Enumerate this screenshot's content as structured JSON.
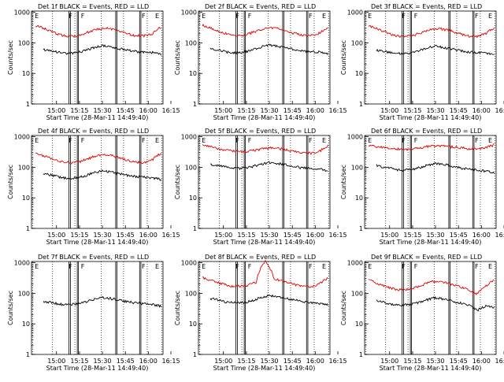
{
  "colors": {
    "events": "#000000",
    "lld": "#e00000",
    "axis": "#000000",
    "dotted": "#000000"
  },
  "common": {
    "ylabel": "Counts/sec",
    "xlabel": "Start Time (28-Mar-11 14:49:40)",
    "xticks": [
      "15:00",
      "15:15",
      "15:30",
      "15:45",
      "16:00",
      "16:15"
    ],
    "yticks": [
      "1",
      "10",
      "100",
      "1000"
    ],
    "flags": [
      "E",
      "F",
      "F",
      "F",
      "E"
    ]
  },
  "chart_data": [
    {
      "type": "line",
      "title": "Det 1f  BLACK = Events, RED = LLD",
      "yscale": "log",
      "ylim": [
        1,
        1100
      ],
      "xlim": [
        "14:49:40",
        "16:26"
      ],
      "series": [
        {
          "values": [
            [
              370,
              290,
              220,
              175,
              165,
              180,
              230,
              290,
              300,
              260,
              210,
              175,
              165,
              200,
              320
            ]
          ]
        },
        {
          "values": [
            [
              60,
              55,
              48,
              45,
              48,
              55,
              70,
              80,
              75,
              65,
              58,
              52,
              50,
              48,
              42
            ]
          ]
        }
      ]
    },
    {
      "type": "line",
      "title": "Det 2f  BLACK = Events, RED = LLD",
      "yscale": "log",
      "ylim": [
        1,
        1100
      ],
      "xlim": [
        "14:49:40",
        "16:26"
      ],
      "series": [
        {
          "values": [
            [
              380,
              300,
              230,
              185,
              175,
              190,
              240,
              300,
              310,
              270,
              215,
              180,
              170,
              205,
              330
            ]
          ]
        },
        {
          "values": [
            [
              65,
              58,
              50,
              47,
              50,
              58,
              72,
              84,
              78,
              68,
              60,
              54,
              52,
              50,
              44
            ]
          ]
        }
      ]
    },
    {
      "type": "line",
      "title": "Det 3f  BLACK = Events, RED = LLD",
      "yscale": "log",
      "ylim": [
        1,
        1100
      ],
      "xlim": [
        "14:49:40",
        "16:26"
      ],
      "series": [
        {
          "values": [
            [
              360,
              280,
              215,
              170,
              160,
              175,
              225,
              280,
              290,
              255,
              205,
              170,
              160,
              195,
              310
            ]
          ]
        },
        {
          "values": [
            [
              58,
              52,
              46,
              44,
              47,
              54,
              68,
              78,
              72,
              63,
              56,
              50,
              48,
              46,
              40
            ]
          ]
        }
      ]
    },
    {
      "type": "line",
      "title": "Det 4f  BLACK = Events, RED = LLD",
      "yscale": "log",
      "ylim": [
        1,
        1100
      ],
      "xlim": [
        "14:49:40",
        "16:26"
      ],
      "series": [
        {
          "values": [
            [
              300,
              230,
              180,
              150,
              140,
              155,
              200,
              250,
              260,
              220,
              175,
              150,
              140,
              175,
              290
            ]
          ]
        },
        {
          "values": [
            [
              62,
              55,
              47,
              43,
              46,
              53,
              66,
              76,
              70,
              62,
              55,
              50,
              48,
              45,
              40
            ]
          ]
        }
      ]
    },
    {
      "type": "line",
      "title": "Det 5f  BLACK = Events, RED = LLD",
      "yscale": "log",
      "ylim": [
        1,
        1100
      ],
      "xlim": [
        "14:49:40",
        "16:26"
      ],
      "series": [
        {
          "values": [
            [
              560,
              470,
              400,
              350,
              320,
              330,
              370,
              420,
              430,
              390,
              340,
              300,
              290,
              320,
              520
            ]
          ]
        },
        {
          "values": [
            [
              125,
              115,
              100,
              92,
              95,
              105,
              125,
              145,
              135,
              120,
              105,
              95,
              92,
              88,
              75
            ]
          ]
        }
      ]
    },
    {
      "type": "line",
      "title": "Det 6f  BLACK = Events, RED = LLD",
      "yscale": "log",
      "ylim": [
        1,
        1100
      ],
      "xlim": [
        "14:49:40",
        "16:26"
      ],
      "series": [
        {
          "values": [
            [
              520,
              470,
              430,
              400,
              380,
              400,
              450,
              500,
              510,
              480,
              440,
              410,
              400,
              420,
              540
            ]
          ]
        },
        {
          "values": [
            [
              115,
              100,
              88,
              80,
              85,
              95,
              115,
              135,
              125,
              110,
              95,
              85,
              80,
              76,
              64
            ]
          ]
        }
      ]
    },
    {
      "type": "line",
      "title": "Det 7f  BLACK = Events, RED = LLD",
      "yscale": "log",
      "ylim": [
        1,
        1100
      ],
      "xlim": [
        "14:49:40",
        "16:26"
      ],
      "series": [
        {
          "values": [
            [
              0,
              0,
              0,
              0,
              0,
              0,
              0,
              0,
              0,
              0,
              0,
              0,
              0,
              0,
              0
            ]
          ]
        },
        {
          "values": [
            [
              55,
              50,
              44,
              42,
              45,
              52,
              64,
              74,
              68,
              60,
              53,
              48,
              46,
              43,
              38
            ]
          ]
        }
      ]
    },
    {
      "type": "line",
      "title": "Det 8f  BLACK = Events, RED = LLD",
      "yscale": "log",
      "ylim": [
        1,
        1100
      ],
      "xlim": [
        "14:49:40",
        "16:26"
      ],
      "series": [
        {
          "values": [
            [
              330,
              260,
              210,
              175,
              170,
              185,
              230,
              1100,
              290,
              250,
              205,
              175,
              165,
              195,
              320
            ]
          ]
        },
        {
          "values": [
            [
              68,
              60,
              52,
              48,
              50,
              58,
              72,
              84,
              78,
              68,
              60,
              54,
              50,
              47,
              42
            ]
          ]
        }
      ]
    },
    {
      "type": "line",
      "title": "Det 9f  BLACK = Events, RED = LLD",
      "yscale": "log",
      "ylim": [
        1,
        1100
      ],
      "xlim": [
        "14:49:40",
        "16:26"
      ],
      "series": [
        {
          "values": [
            [
              280,
              210,
              165,
              135,
              130,
              145,
              190,
              240,
              250,
              210,
              170,
              140,
              90,
              160,
              280
            ]
          ]
        },
        {
          "values": [
            [
              58,
              50,
              43,
              40,
              43,
              50,
              62,
              72,
              66,
              56,
              48,
              40,
              28,
              38,
              34
            ]
          ]
        }
      ]
    }
  ]
}
